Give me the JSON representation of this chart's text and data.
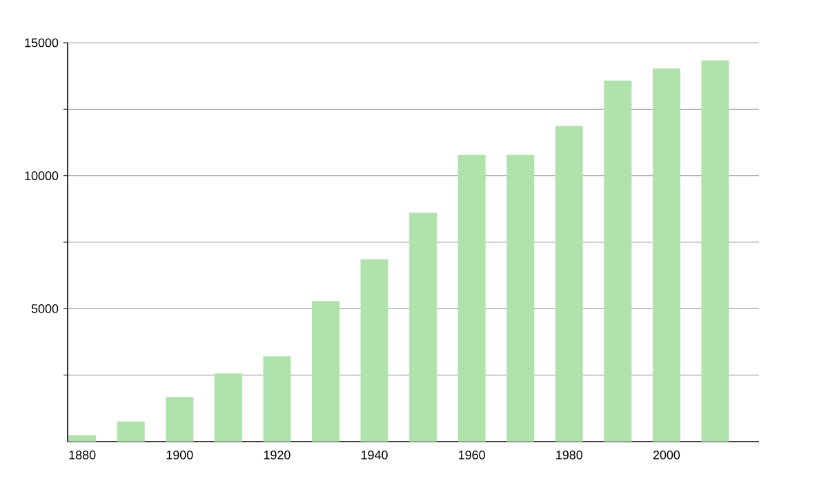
{
  "chart_data": {
    "type": "bar",
    "x": [
      1880,
      1890,
      1900,
      1910,
      1920,
      1930,
      1940,
      1950,
      1960,
      1970,
      1980,
      1990,
      2000,
      2010
    ],
    "values": [
      240,
      760,
      1680,
      2560,
      3210,
      5290,
      6860,
      8610,
      10780,
      10780,
      11870,
      13580,
      14030,
      14340
    ],
    "color": "#b0e2ac",
    "xlim": [
      1877,
      2019
    ],
    "xticks": [
      1880,
      1900,
      1920,
      1940,
      1960,
      1980,
      2000
    ],
    "ylim": [
      0,
      15000
    ],
    "yticks": [
      {
        "value": 2500,
        "label": null
      },
      5000,
      {
        "value": 7500,
        "label": null
      },
      10000,
      {
        "value": 12500,
        "label": null
      },
      15000
    ],
    "grid": "y"
  }
}
